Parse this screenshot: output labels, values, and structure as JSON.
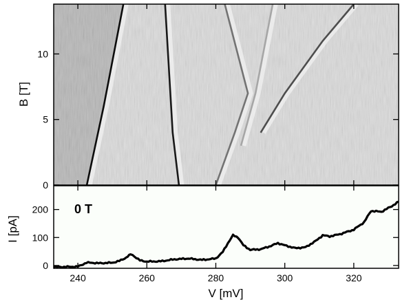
{
  "chart_data": [
    {
      "type": "heatmap",
      "description_kind": "differential conductance map (grayscale, derivative rendering)",
      "xlim": [
        233,
        333
      ],
      "ylim": [
        0,
        13.8
      ],
      "ylabel": "B [T]",
      "y_ticks": [
        0,
        5,
        10
      ],
      "x_ticks": [
        240,
        260,
        280,
        300,
        320
      ],
      "colors": {
        "background": "#b7b7b7",
        "bright": "#f4f4f4",
        "dark": "#1a1a1a"
      },
      "features": [
        {
          "name": "line-1",
          "points": [
            [
              242.6,
              0
            ],
            [
              247.5,
              6
            ],
            [
              253.2,
              13.8
            ]
          ],
          "darkness": 0.95
        },
        {
          "name": "line-2",
          "points": [
            [
              269.3,
              0
            ],
            [
              267.5,
              4
            ],
            [
              265.3,
              13.8
            ]
          ],
          "darkness": 0.9
        },
        {
          "name": "line-3",
          "points": [
            [
              280.0,
              0
            ],
            [
              285.5,
              4
            ],
            [
              289.3,
              7
            ],
            [
              282.6,
              13.8
            ]
          ],
          "darkness": 0.55
        },
        {
          "name": "line-4",
          "points": [
            [
              293.0,
              4.0
            ],
            [
              300.0,
              7.0
            ],
            [
              311.0,
              11.0
            ],
            [
              320.0,
              13.8
            ]
          ],
          "darkness": 0.7
        },
        {
          "name": "line-5",
          "points": [
            [
              287.3,
              3.0
            ],
            [
              291.5,
              7.0
            ],
            [
              296.5,
              13.8
            ]
          ],
          "darkness": 0.35
        }
      ]
    },
    {
      "type": "line",
      "annotation": "0 T",
      "xlabel": "V [mV]",
      "ylabel": "I [pA]",
      "xlim": [
        233,
        333
      ],
      "ylim": [
        -10,
        285
      ],
      "x_ticks": [
        240,
        260,
        280,
        300,
        320
      ],
      "y_ticks": [
        0,
        100,
        200
      ],
      "series": [
        {
          "color": "#000000",
          "x": [
            233,
            236,
            240,
            242.5,
            244,
            246,
            250,
            252,
            254,
            255.3,
            256.5,
            258,
            260,
            264,
            268,
            272,
            276,
            280,
            282,
            283.5,
            285,
            286.5,
            288,
            290,
            293,
            296,
            298,
            300,
            303,
            306,
            309,
            311,
            313,
            316,
            320,
            323,
            325,
            328,
            331,
            333
          ],
          "y": [
            -5,
            -5,
            -4,
            10,
            10,
            8,
            10,
            16,
            28,
            40,
            32,
            18,
            14,
            15,
            22,
            25,
            20,
            25,
            48,
            80,
            108,
            100,
            72,
            56,
            58,
            70,
            80,
            72,
            62,
            65,
            88,
            108,
            104,
            112,
            128,
            155,
            195,
            192,
            212,
            228
          ]
        }
      ]
    }
  ]
}
